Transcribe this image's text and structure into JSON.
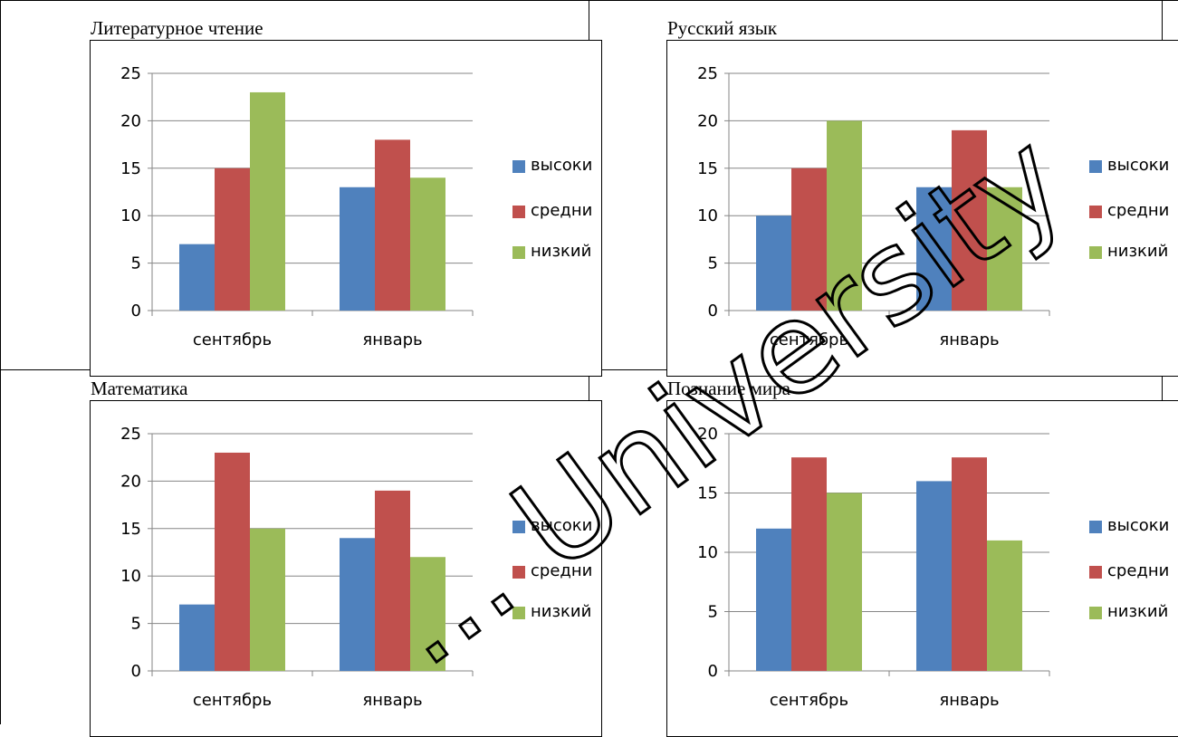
{
  "chart_data": [
    {
      "type": "bar",
      "title": "Литературное чтение",
      "categories": [
        "сентябрь",
        "январь"
      ],
      "series": [
        {
          "name": "высоки",
          "values": [
            7,
            13
          ]
        },
        {
          "name": "средни",
          "values": [
            15,
            18
          ]
        },
        {
          "name": "низкий",
          "values": [
            23,
            14
          ]
        }
      ],
      "ylim": [
        0,
        25
      ],
      "yticks": [
        0,
        5,
        10,
        15,
        20,
        25
      ],
      "grid": true,
      "legend": "right"
    },
    {
      "type": "bar",
      "title": "Русский язык",
      "categories": [
        "сентябрь",
        "январь"
      ],
      "series": [
        {
          "name": "высоки",
          "values": [
            10,
            13
          ]
        },
        {
          "name": "средни",
          "values": [
            15,
            19
          ]
        },
        {
          "name": "низкий",
          "values": [
            20,
            13
          ]
        }
      ],
      "ylim": [
        0,
        25
      ],
      "yticks": [
        0,
        5,
        10,
        15,
        20,
        25
      ],
      "grid": true,
      "legend": "right"
    },
    {
      "type": "bar",
      "title": "Математика",
      "categories": [
        "сентябрь",
        "январь"
      ],
      "series": [
        {
          "name": "высоки",
          "values": [
            7,
            14
          ]
        },
        {
          "name": "средни",
          "values": [
            23,
            19
          ]
        },
        {
          "name": "низкий",
          "values": [
            15,
            12
          ]
        }
      ],
      "ylim": [
        0,
        25
      ],
      "yticks": [
        0,
        5,
        10,
        15,
        20,
        25
      ],
      "grid": true,
      "legend": "right"
    },
    {
      "type": "bar",
      "title": "Познание мира",
      "categories": [
        "сентябрь",
        "январь"
      ],
      "series": [
        {
          "name": "высоки",
          "values": [
            12,
            16
          ]
        },
        {
          "name": "средни",
          "values": [
            18,
            18
          ]
        },
        {
          "name": "низкий",
          "values": [
            15,
            11
          ]
        }
      ],
      "ylim": [
        0,
        20
      ],
      "yticks": [
        0,
        5,
        10,
        15,
        20
      ],
      "grid": true,
      "legend": "right"
    }
  ],
  "colors": {
    "series": [
      "#4F81BD",
      "#C0504D",
      "#9BBB59"
    ],
    "grid": "#868686",
    "watermark": "#000000"
  },
  "watermark": {
    "text": "... University"
  }
}
